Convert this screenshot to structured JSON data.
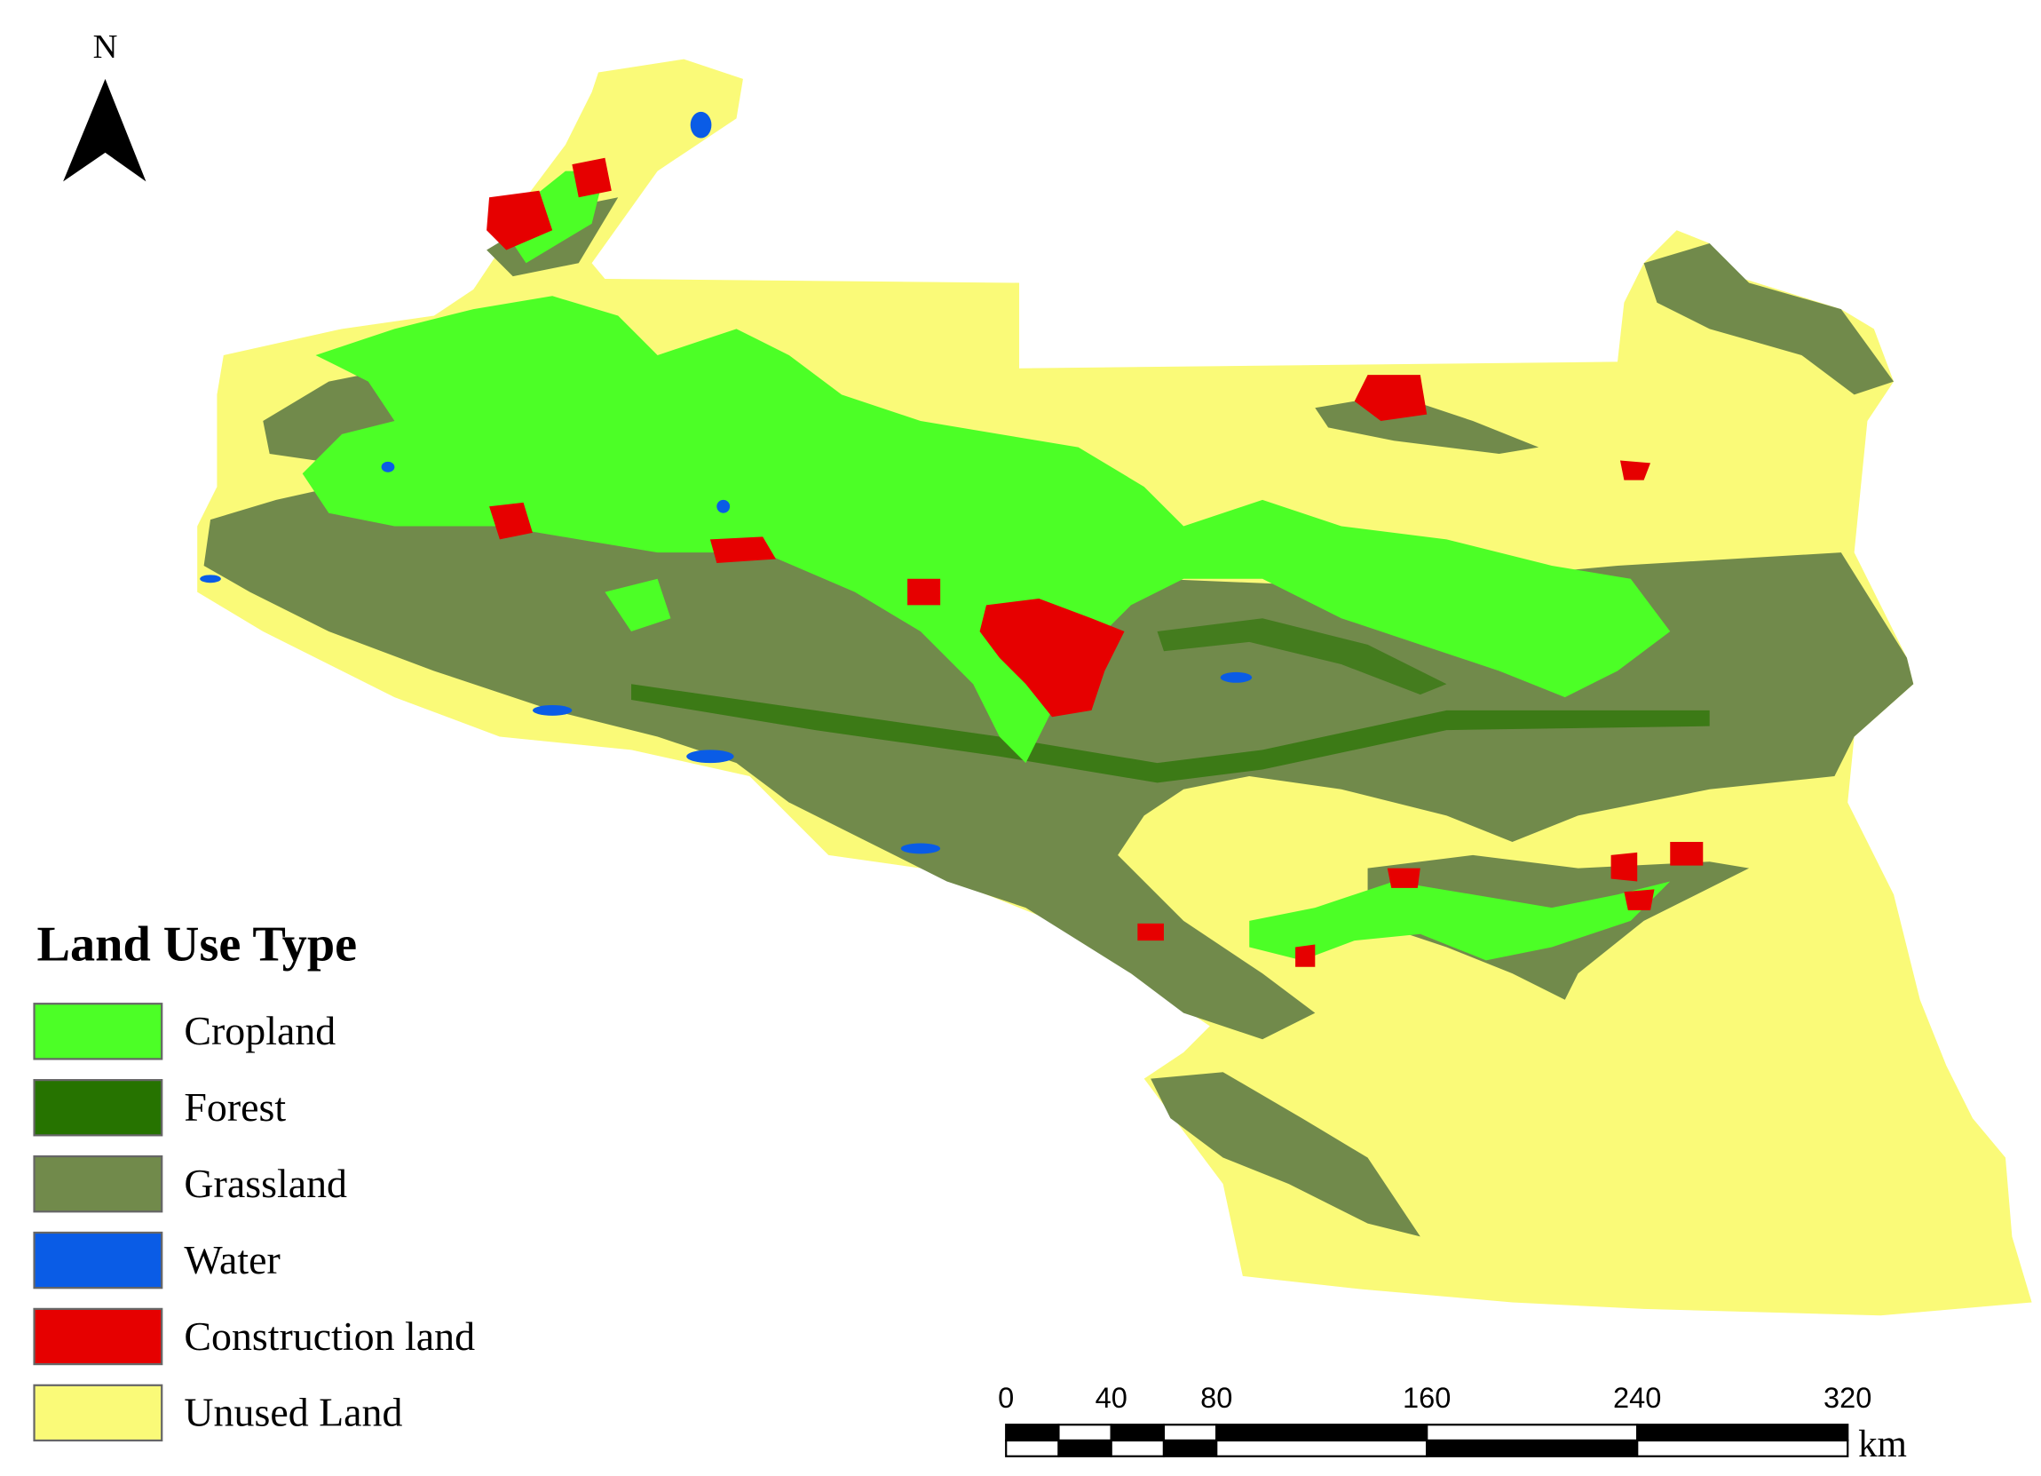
{
  "north_arrow": {
    "label": "N"
  },
  "legend": {
    "title": "Land Use Type",
    "items": [
      {
        "name": "Cropland",
        "color": "#4cff26"
      },
      {
        "name": "Forest",
        "color": "#267300"
      },
      {
        "name": "Grassland",
        "color": "#718a4b"
      },
      {
        "name": "Water",
        "color": "#0a5ce6"
      },
      {
        "name": "Construction land",
        "color": "#e60000"
      },
      {
        "name": "Unused Land",
        "color": "#fafa78"
      }
    ]
  },
  "scale_bar": {
    "ticks": [
      0,
      40,
      80,
      160,
      240,
      320
    ],
    "unit": "km"
  }
}
